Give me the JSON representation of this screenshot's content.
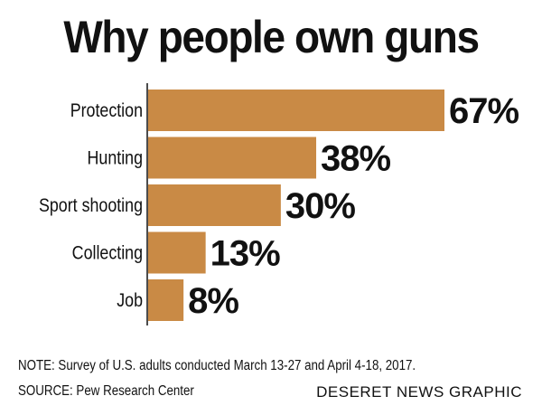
{
  "chart_data": {
    "type": "bar",
    "orientation": "horizontal",
    "title": "Why people own guns",
    "categories": [
      "Protection",
      "Hunting",
      "Sport shooting",
      "Collecting",
      "Job"
    ],
    "values": [
      67,
      38,
      30,
      13,
      8
    ],
    "value_labels": [
      "67%",
      "38%",
      "30%",
      "13%",
      "8%"
    ],
    "xlim": [
      0,
      67
    ],
    "grid": false,
    "bar_color": "#C98A45"
  },
  "note": "NOTE: Survey of U.S. adults conducted March 13-27 and April 4-18, 2017.",
  "source": "SOURCE: Pew Research Center",
  "credit": "DESERET NEWS GRAPHIC"
}
